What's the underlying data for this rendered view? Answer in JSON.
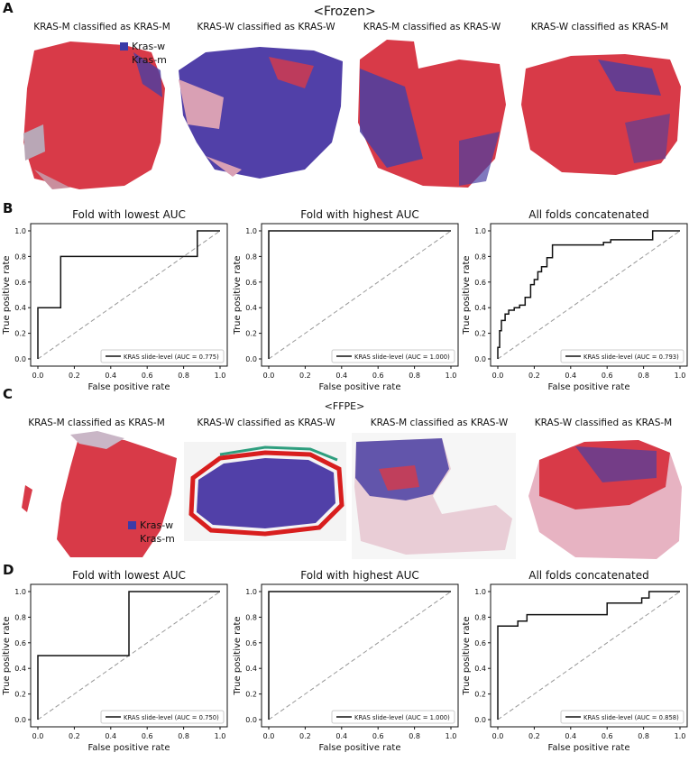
{
  "panels": {
    "a": "A",
    "b": "B",
    "c": "C",
    "d": "D"
  },
  "frozen_title": "<Frozen>",
  "ffpe_title": "<FFPE>",
  "frozen_captions": [
    "KRAS-M classified as KRAS-M",
    "KRAS-W classified as KRAS-W",
    "KRAS-M classified as KRAS-W",
    "KRAS-W classified as KRAS-M"
  ],
  "ffpe_captions": [
    "KRAS-M classified as KRAS-M",
    "KRAS-W classified as KRAS-W",
    "KRAS-M classified as KRAS-W",
    "KRAS-W classified as KRAS-M"
  ],
  "legend": {
    "kras_w": "Kras-w",
    "kras_m": "Kras-m",
    "kras_w_color": "#3b3ba8",
    "kras_m_color": "#d83a48"
  },
  "chart_data": [
    {
      "id": "b1",
      "type": "line",
      "title": "Fold with lowest AUC",
      "xlabel": "False positive rate",
      "ylabel": "True positive rate",
      "xlim": [
        0,
        1
      ],
      "ylim": [
        0,
        1
      ],
      "ticks": [
        "0.0",
        "0.2",
        "0.4",
        "0.6",
        "0.8",
        "1.0"
      ],
      "legend": "KRAS slide-level (AUC = 0.775)",
      "x": [
        0,
        0,
        0.125,
        0.125,
        0.875,
        0.875,
        1.0
      ],
      "y": [
        0,
        0.4,
        0.4,
        0.8,
        0.8,
        1.0,
        1.0
      ]
    },
    {
      "id": "b2",
      "type": "line",
      "title": "Fold with highest AUC",
      "xlabel": "False positive rate",
      "ylabel": "True positive rate",
      "xlim": [
        0,
        1
      ],
      "ylim": [
        0,
        1
      ],
      "ticks": [
        "0.0",
        "0.2",
        "0.4",
        "0.6",
        "0.8",
        "1.0"
      ],
      "legend": "KRAS slide-level (AUC = 1.000)",
      "x": [
        0,
        0,
        1.0
      ],
      "y": [
        0,
        1.0,
        1.0
      ]
    },
    {
      "id": "b3",
      "type": "line",
      "title": "All folds concatenated",
      "xlabel": "False positive rate",
      "ylabel": "True positive rate",
      "xlim": [
        0,
        1
      ],
      "ylim": [
        0,
        1
      ],
      "ticks": [
        "0.0",
        "0.2",
        "0.4",
        "0.6",
        "0.8",
        "1.0"
      ],
      "legend": "KRAS slide-level (AUC = 0.793)",
      "x": [
        0,
        0,
        0.01,
        0.01,
        0.02,
        0.02,
        0.04,
        0.04,
        0.06,
        0.06,
        0.09,
        0.09,
        0.12,
        0.12,
        0.15,
        0.15,
        0.18,
        0.18,
        0.2,
        0.2,
        0.22,
        0.22,
        0.24,
        0.24,
        0.27,
        0.27,
        0.3,
        0.3,
        0.58,
        0.58,
        0.62,
        0.62,
        0.85,
        0.85,
        1.0
      ],
      "y": [
        0,
        0.09,
        0.09,
        0.22,
        0.22,
        0.3,
        0.3,
        0.35,
        0.35,
        0.38,
        0.38,
        0.4,
        0.4,
        0.42,
        0.42,
        0.48,
        0.48,
        0.58,
        0.58,
        0.62,
        0.62,
        0.68,
        0.68,
        0.72,
        0.72,
        0.79,
        0.79,
        0.89,
        0.89,
        0.91,
        0.91,
        0.93,
        0.93,
        1.0,
        1.0
      ]
    },
    {
      "id": "d1",
      "type": "line",
      "title": "Fold with lowest AUC",
      "xlabel": "False positive rate",
      "ylabel": "True positive rate",
      "xlim": [
        0,
        1
      ],
      "ylim": [
        0,
        1
      ],
      "ticks": [
        "0.0",
        "0.2",
        "0.4",
        "0.6",
        "0.8",
        "1.0"
      ],
      "legend": "KRAS slide-level (AUC = 0.750)",
      "x": [
        0,
        0,
        0.5,
        0.5,
        1.0
      ],
      "y": [
        0,
        0.5,
        0.5,
        1.0,
        1.0
      ]
    },
    {
      "id": "d2",
      "type": "line",
      "title": "Fold with highest AUC",
      "xlabel": "False positive rate",
      "ylabel": "True positive rate",
      "xlim": [
        0,
        1
      ],
      "ylim": [
        0,
        1
      ],
      "ticks": [
        "0.0",
        "0.2",
        "0.4",
        "0.6",
        "0.8",
        "1.0"
      ],
      "legend": "KRAS slide-level (AUC = 1.000)",
      "x": [
        0,
        0,
        1.0
      ],
      "y": [
        0,
        1.0,
        1.0
      ]
    },
    {
      "id": "d3",
      "type": "line",
      "title": "All folds concatenated",
      "xlabel": "False positive rate",
      "ylabel": "True positive rate",
      "xlim": [
        0,
        1
      ],
      "ylim": [
        0,
        1
      ],
      "ticks": [
        "0.0",
        "0.2",
        "0.4",
        "0.6",
        "0.8",
        "1.0"
      ],
      "legend": "KRAS slide-level (AUC = 0.858)",
      "x": [
        0,
        0,
        0.11,
        0.11,
        0.16,
        0.16,
        0.6,
        0.6,
        0.79,
        0.79,
        0.83,
        0.83,
        1.0
      ],
      "y": [
        0,
        0.73,
        0.73,
        0.77,
        0.77,
        0.82,
        0.82,
        0.91,
        0.91,
        0.95,
        0.95,
        1.0,
        1.0
      ]
    }
  ]
}
